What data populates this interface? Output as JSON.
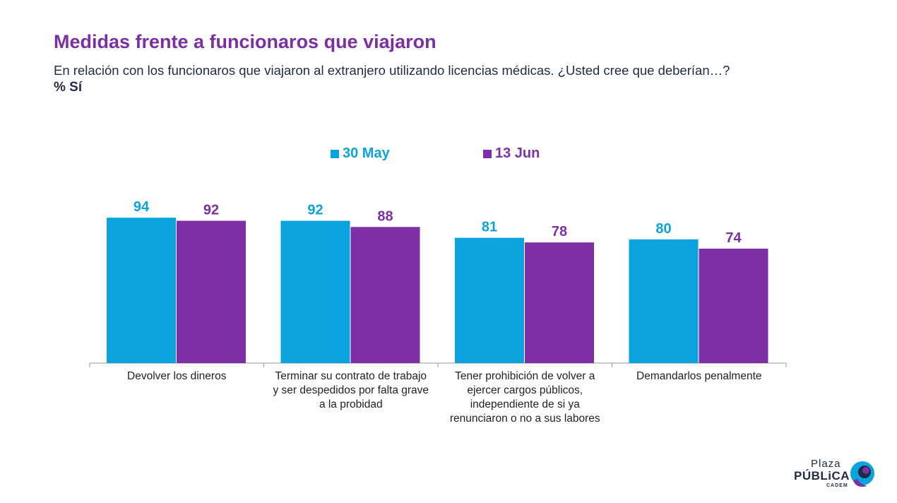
{
  "header": {
    "title": "Medidas frente a funcionaros que viajaron",
    "subtitle": "En relación con los funcionaros que viajaron al extranjero utilizando licencias médicas. ¿Usted cree que deberían…?",
    "unit_label": "% Sí"
  },
  "colors": {
    "series_1": "#0aa3dd",
    "series_2": "#7e2fa6",
    "title": "#7b2fa3",
    "text": "#1f2a44"
  },
  "chart_data": {
    "type": "bar",
    "categories": [
      [
        "Devolver los dineros"
      ],
      [
        "Terminar su contrato de trabajo",
        "y ser despedidos por falta grave",
        "a la probidad"
      ],
      [
        "Tener prohibición de volver a",
        "ejercer cargos públicos,",
        "independiente de si ya",
        "renunciaron o no a sus labores"
      ],
      [
        "Demandarlos penalmente"
      ]
    ],
    "series": [
      {
        "name": "30 May",
        "values": [
          94,
          92,
          81,
          80
        ]
      },
      {
        "name": "13 Jun",
        "values": [
          92,
          88,
          78,
          74
        ]
      }
    ],
    "ylim": [
      0,
      100
    ],
    "grid": false,
    "legend_position": "top-center",
    "data_labels": true
  },
  "logo": {
    "line1": "Plaza",
    "line2": "PÚBLiCA",
    "line3": "CADEM"
  }
}
